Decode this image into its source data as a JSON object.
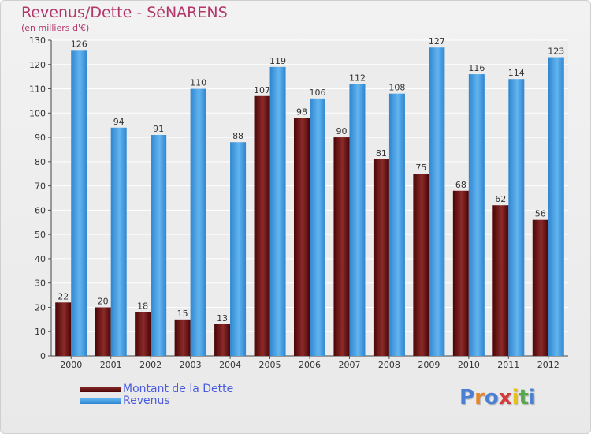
{
  "chart_data": {
    "type": "bar",
    "title": "Revenus/Dette - SéNARENS",
    "subtitle": "(en milliers d'€)",
    "categories": [
      "2000",
      "2001",
      "2002",
      "2003",
      "2004",
      "2005",
      "2006",
      "2007",
      "2008",
      "2009",
      "2010",
      "2011",
      "2012"
    ],
    "series": [
      {
        "name": "Montant de la Dette",
        "color": "#7a1c1c",
        "values": [
          22,
          20,
          18,
          15,
          13,
          107,
          98,
          90,
          81,
          75,
          68,
          62,
          56
        ]
      },
      {
        "name": "Revenus",
        "color": "#3f9be0",
        "values": [
          126,
          94,
          91,
          110,
          88,
          119,
          106,
          112,
          108,
          127,
          116,
          114,
          123
        ]
      }
    ],
    "ylim": [
      0,
      130
    ],
    "yticks": [
      0,
      10,
      20,
      30,
      40,
      50,
      60,
      70,
      80,
      90,
      100,
      110,
      120,
      130
    ],
    "grid": true,
    "legend": "bottom-left"
  },
  "logo": {
    "letters": [
      {
        "ch": "P",
        "color": "#4a7fd6"
      },
      {
        "ch": "r",
        "color": "#e8862a"
      },
      {
        "ch": "o",
        "color": "#4a7fd6"
      },
      {
        "ch": "x",
        "color": "#d43c3c"
      },
      {
        "ch": "i",
        "color": "#e8c21a"
      },
      {
        "ch": "t",
        "color": "#57a84a"
      },
      {
        "ch": "i",
        "color": "#4a7fd6"
      }
    ]
  }
}
